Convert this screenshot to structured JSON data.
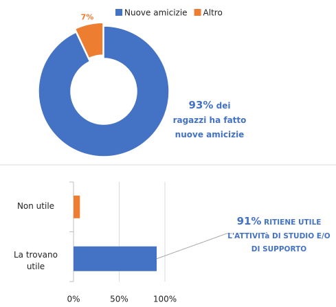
{
  "chart_data": [
    {
      "type": "pie",
      "donut": true,
      "legend": "top",
      "categories": [
        "Nuove amicizie",
        "Altro"
      ],
      "values": [
        93,
        7
      ],
      "value_labels": [
        null,
        "7%"
      ],
      "colors": [
        "#4472c4",
        "#ed7d31"
      ],
      "annotation": {
        "highlight": "93%",
        "text": "dei ragazzi ha fatto nuove amicizie"
      }
    },
    {
      "type": "barh",
      "categories": [
        "Non utile",
        "La trovano utile"
      ],
      "values": [
        7,
        91
      ],
      "colors": [
        "#ed7d31",
        "#4472c4"
      ],
      "xlim": [
        0,
        100
      ],
      "xticks": [
        {
          "value": 0,
          "label": "0%"
        },
        {
          "value": 50,
          "label": "50%"
        },
        {
          "value": 100,
          "label": "100%"
        }
      ],
      "grid": true,
      "annotation": {
        "highlight": "91%",
        "text": "RITIENE UTILE L'ATTIVITà DI STUDIO E/O DI SUPPORTO"
      }
    }
  ]
}
